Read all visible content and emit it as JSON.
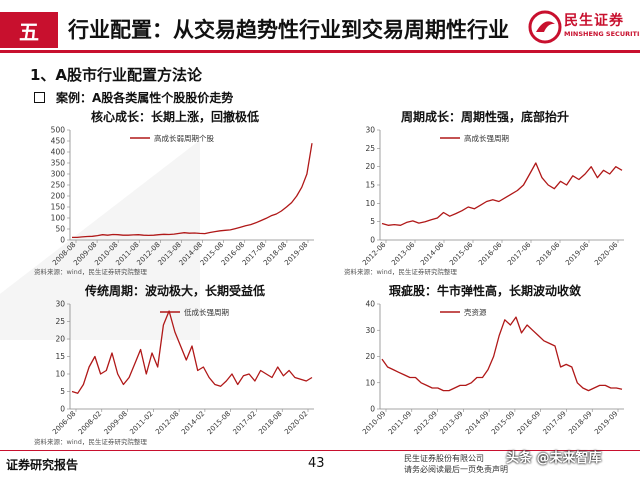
{
  "header": {
    "section_number": "五",
    "title": "行业配置：从交易趋势性行业到交易周期性行业",
    "logo_cn": "民生证券",
    "logo_en": "MINSHENG SECURITIES"
  },
  "section_heading": "1、A股市行业配置方法论",
  "case_label": "案例：A股各类属性个股股价走势",
  "colors": {
    "brand_red": "#c8102e",
    "line": "#b01818",
    "axis": "#888888"
  },
  "chart_data": [
    {
      "type": "line",
      "title": "核心成长：长期上涨，回撤极低",
      "legend": "高成长弱周期个股",
      "source": "资料来源：wind，民生证券研究院整理",
      "x_labels": [
        "2008-08",
        "2009-08",
        "2010-08",
        "2011-08",
        "2012-08",
        "2013-08",
        "2014-08",
        "2015-08",
        "2016-08",
        "2017-08",
        "2018-08",
        "2019-08"
      ],
      "ylim": [
        0,
        500
      ],
      "yticks": [
        0,
        50,
        100,
        150,
        200,
        250,
        300,
        350,
        400,
        450,
        500
      ],
      "y": [
        12,
        12,
        14,
        16,
        17,
        20,
        24,
        22,
        25,
        24,
        22,
        22,
        23,
        24,
        22,
        21,
        22,
        24,
        26,
        25,
        27,
        30,
        33,
        31,
        32,
        30,
        29,
        34,
        38,
        42,
        44,
        46,
        52,
        58,
        65,
        70,
        78,
        88,
        98,
        110,
        118,
        132,
        150,
        170,
        200,
        240,
        300,
        440
      ]
    },
    {
      "type": "line",
      "title": "周期成长：周期性强，底部抬升",
      "legend": "高成长强周期",
      "source": "资料来源：wind，民生证券研究院整理",
      "x_labels": [
        "2012-06",
        "2013-06",
        "2014-06",
        "2015-06",
        "2016-06",
        "2017-06",
        "2018-06",
        "2019-06",
        "2020-06"
      ],
      "ylim": [
        0,
        30
      ],
      "yticks": [
        0,
        5,
        10,
        15,
        20,
        25,
        30
      ],
      "y": [
        4.5,
        4,
        4.2,
        4,
        4.8,
        5.2,
        4.6,
        5,
        5.5,
        6,
        7.5,
        6.5,
        7.2,
        8,
        9,
        8.5,
        9.5,
        10.5,
        11,
        10.5,
        11.5,
        12.5,
        13.5,
        15,
        18,
        21,
        17,
        15,
        14,
        16,
        15,
        17.5,
        16.5,
        18,
        20,
        17,
        19,
        18,
        20,
        19
      ]
    },
    {
      "type": "line",
      "title": "传统周期：波动极大，长期受益低",
      "legend": "低成长强周期",
      "source": "资料来源：wind，民生证券研究院整理",
      "x_labels": [
        "2006-08",
        "2008-02",
        "2009-08",
        "2011-02",
        "2012-08",
        "2014-02",
        "2015-08",
        "2017-02",
        "2018-08",
        "2020-02"
      ],
      "ylim": [
        0,
        30
      ],
      "yticks": [
        0,
        5,
        10,
        15,
        20,
        25,
        30
      ],
      "y": [
        5,
        4.5,
        7,
        12,
        15,
        10,
        11,
        16,
        10,
        7,
        9,
        13,
        17,
        10,
        16,
        12,
        24,
        28,
        22,
        18,
        14,
        18,
        11,
        12,
        9,
        7,
        6.5,
        8,
        10,
        7,
        9.5,
        10,
        8,
        11,
        10,
        9,
        12,
        9.5,
        11,
        9,
        8.5,
        8,
        9
      ]
    },
    {
      "type": "line",
      "title": "瑕疵股：牛市弹性高，长期波动收敛",
      "legend": "壳资源",
      "source": "",
      "x_labels": [
        "2010-09",
        "2011-09",
        "2012-09",
        "2013-09",
        "2014-09",
        "2015-09",
        "2016-09",
        "2017-09",
        "2018-09",
        "2019-09"
      ],
      "ylim": [
        0,
        40
      ],
      "yticks": [
        0,
        10,
        20,
        30,
        40
      ],
      "y": [
        19,
        16,
        15,
        14,
        13,
        12,
        12,
        10,
        9,
        8,
        8,
        7,
        7,
        8,
        9,
        9,
        10,
        12,
        12,
        15,
        20,
        28,
        34,
        32,
        35,
        29,
        32,
        30,
        28,
        26,
        25,
        24,
        16,
        17,
        16,
        10,
        8,
        7,
        8,
        9,
        9,
        8,
        8,
        7.5
      ]
    }
  ],
  "footer": {
    "left_label": "证券研究报告",
    "page_number": "43",
    "disclaimer_line1": "民生证券股份有限公司",
    "disclaimer_line2": "请务必阅读最后一页免责声明",
    "watermark": "头条 @未来智库"
  }
}
